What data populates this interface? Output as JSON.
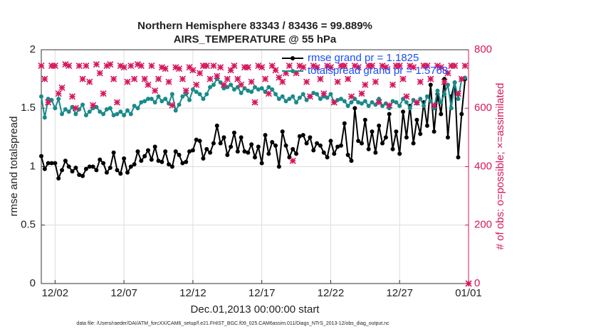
{
  "chart_data": {
    "type": "line",
    "title": "Northern Hemisphere 83343 / 83436 = 99.889%",
    "subtitle": "AIRS_TEMPERATURE @ 55 hPa",
    "xlabel": "Dec.01,2013 00:00:00 start",
    "ylabel": "rmse and totalspread",
    "y2label": "# of obs: o=possible; ×=assimilated",
    "footnote": "data file: /Users/raeder/DAI/ATM_forcXX/CAM6_setup/f.e21.FHIST_BGC.f09_025.CAM6assim.011/Diags_NTrS_2013-12/obs_diag_output.nc",
    "xlim": [
      1,
      32
    ],
    "xticks": [
      {
        "value": 2,
        "label": "12/02"
      },
      {
        "value": 7,
        "label": "12/07"
      },
      {
        "value": 12,
        "label": "12/12"
      },
      {
        "value": 17,
        "label": "12/17"
      },
      {
        "value": 22,
        "label": "12/22"
      },
      {
        "value": 27,
        "label": "12/27"
      },
      {
        "value": 32,
        "label": "01/01"
      }
    ],
    "ylim": [
      0,
      2
    ],
    "yticks": [
      0,
      0.5,
      1,
      1.5,
      2
    ],
    "y2lim": [
      0,
      800
    ],
    "y2ticks": [
      0,
      200,
      400,
      600,
      800
    ],
    "y2color": "#d6175d",
    "grid": true,
    "legend": "upper right",
    "legend_text_color": "#1a4cff",
    "x": [
      1,
      1.25,
      1.5,
      1.75,
      2,
      2.25,
      2.5,
      2.75,
      3,
      3.25,
      3.5,
      3.75,
      4,
      4.25,
      4.5,
      4.75,
      5,
      5.25,
      5.5,
      5.75,
      6,
      6.25,
      6.5,
      6.75,
      7,
      7.25,
      7.5,
      7.75,
      8,
      8.25,
      8.5,
      8.75,
      9,
      9.25,
      9.5,
      9.75,
      10,
      10.25,
      10.5,
      10.75,
      11,
      11.25,
      11.5,
      11.75,
      12,
      12.25,
      12.5,
      12.75,
      13,
      13.25,
      13.5,
      13.75,
      14,
      14.25,
      14.5,
      14.75,
      15,
      15.25,
      15.5,
      15.75,
      16,
      16.25,
      16.5,
      16.75,
      17,
      17.25,
      17.5,
      17.75,
      18,
      18.25,
      18.5,
      18.75,
      19,
      19.25,
      19.5,
      19.75,
      20,
      20.25,
      20.5,
      20.75,
      21,
      21.25,
      21.5,
      21.75,
      22,
      22.25,
      22.5,
      22.75,
      23,
      23.25,
      23.5,
      23.75,
      24,
      24.25,
      24.5,
      24.75,
      25,
      25.25,
      25.5,
      25.75,
      26,
      26.25,
      26.5,
      26.75,
      27,
      27.25,
      27.5,
      27.75,
      28,
      28.25,
      28.5,
      28.75,
      29,
      29.25,
      29.5,
      29.75,
      30,
      30.25,
      30.5,
      30.75,
      31,
      31.25,
      31.5,
      31.75,
      32
    ],
    "series": [
      {
        "name": "rmse grand pr = 1.1825",
        "color": "#000000",
        "marker": "circle",
        "values": [
          1.09,
          0.98,
          1.03,
          1.03,
          1.03,
          0.9,
          0.97,
          1.05,
          1.0,
          0.96,
          0.99,
          0.93,
          0.92,
          0.98,
          1.0,
          1.0,
          0.97,
          1.06,
          1.03,
          0.95,
          0.99,
          1.12,
          0.97,
          0.94,
          1.07,
          0.95,
          1.0,
          1.02,
          1.13,
          1.05,
          1.09,
          1.14,
          1.06,
          1.17,
          1.05,
          1.04,
          1.13,
          1.02,
          1.0,
          1.13,
          1.1,
          1.03,
          1.04,
          1.13,
          1.14,
          1.23,
          1.22,
          1.07,
          1.15,
          1.12,
          1.2,
          1.35,
          1.2,
          1.25,
          1.1,
          1.17,
          1.29,
          1.13,
          1.25,
          1.13,
          1.12,
          1.19,
          1.08,
          1.17,
          1.03,
          1.27,
          1.11,
          1.21,
          1.18,
          1.0,
          1.3,
          1.18,
          1.08,
          1.15,
          1.11,
          1.26,
          1.27,
          1.2,
          1.25,
          1.14,
          1.2,
          1.18,
          1.12,
          1.08,
          1.22,
          1.11,
          1.17,
          1.18,
          1.37,
          1.1,
          1.05,
          1.5,
          1.22,
          1.2,
          1.4,
          1.15,
          1.3,
          1.12,
          1.35,
          1.2,
          1.25,
          1.45,
          1.15,
          1.3,
          1.11,
          1.47,
          1.25,
          1.52,
          1.2,
          1.4,
          1.28,
          1.55,
          1.35,
          1.7,
          1.3,
          1.62,
          1.45,
          1.75,
          1.25,
          1.6,
          1.72,
          1.08,
          1.45,
          1.75,
          null
        ]
      },
      {
        "name": "totalspread grand pr = 1.5768",
        "color": "#1a8a8a",
        "marker": "circle",
        "values": [
          1.6,
          1.42,
          1.58,
          1.57,
          1.5,
          1.58,
          1.45,
          1.49,
          1.47,
          1.51,
          1.45,
          1.49,
          1.53,
          1.44,
          1.47,
          1.5,
          1.51,
          1.47,
          1.45,
          1.49,
          1.5,
          1.44,
          1.45,
          1.47,
          1.44,
          1.48,
          1.45,
          1.52,
          1.5,
          1.55,
          1.56,
          1.58,
          1.58,
          1.55,
          1.6,
          1.56,
          1.58,
          1.54,
          1.62,
          1.48,
          1.53,
          1.6,
          1.62,
          1.57,
          1.66,
          1.64,
          1.62,
          1.58,
          1.62,
          1.68,
          1.7,
          1.75,
          1.72,
          1.67,
          1.68,
          1.7,
          1.66,
          1.68,
          1.63,
          1.67,
          1.65,
          1.64,
          1.68,
          1.66,
          1.67,
          1.64,
          1.68,
          1.66,
          1.62,
          1.58,
          1.6,
          1.56,
          1.58,
          1.6,
          1.55,
          1.59,
          1.62,
          1.57,
          1.6,
          1.63,
          1.62,
          1.58,
          1.6,
          1.59,
          1.62,
          1.55,
          1.57,
          1.58,
          1.56,
          1.52,
          1.55,
          1.58,
          1.55,
          1.54,
          1.56,
          1.52,
          1.55,
          1.53,
          1.58,
          1.52,
          1.54,
          1.5,
          1.56,
          1.55,
          1.52,
          1.58,
          1.55,
          1.5,
          1.57,
          1.54,
          1.58,
          1.52,
          1.6,
          1.56,
          1.5,
          1.65,
          1.55,
          1.62,
          1.7,
          1.5,
          1.72,
          1.58,
          1.75,
          1.76,
          null
        ]
      },
      {
        "color": "#d6175d",
        "marker": "cross",
        "axis": "y2",
        "values": [
          745,
          700,
          620,
          745,
          745,
          650,
          670,
          750,
          745,
          640,
          600,
          745,
          700,
          745,
          690,
          610,
          750,
          720,
          650,
          745,
          750,
          700,
          620,
          745,
          740,
          690,
          745,
          700,
          750,
          745,
          700,
          680,
          745,
          660,
          700,
          740,
          735,
          690,
          610,
          740,
          735,
          700,
          660,
          740,
          730,
          680,
          720,
          745,
          745,
          700,
          745,
          710,
          740,
          680,
          700,
          730,
          745,
          700,
          680,
          740,
          740,
          690,
          620,
          745,
          740,
          700,
          650,
          745,
          730,
          705,
          690,
          720,
          745,
          420,
          720,
          745,
          740,
          690,
          640,
          745,
          740,
          700,
          650,
          745,
          740,
          620,
          690,
          745,
          745,
          700,
          640,
          745,
          740,
          650,
          680,
          745,
          745,
          690,
          620,
          745,
          740,
          610,
          680,
          745,
          745,
          700,
          640,
          745,
          740,
          620,
          690,
          745,
          745,
          700,
          610,
          745,
          740,
          690,
          720,
          745,
          745,
          650,
          700,
          745,
          0
        ]
      }
    ]
  }
}
